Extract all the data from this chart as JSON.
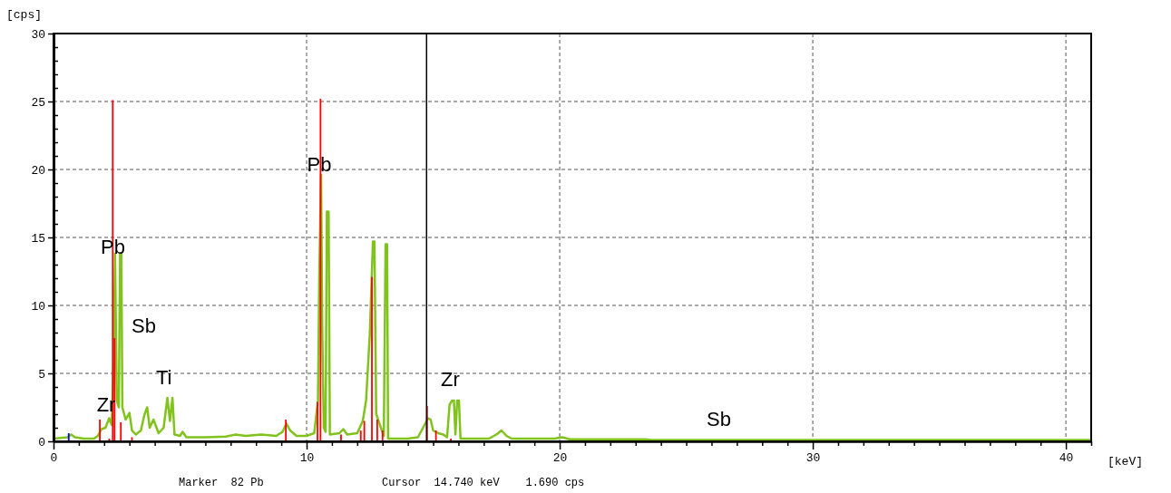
{
  "chart_data": {
    "type": "line",
    "xlabel": "[keV]",
    "ylabel": "[cps]",
    "xlim": [
      0,
      41
    ],
    "ylim": [
      0,
      30
    ],
    "xticks": [
      0,
      {
        "value": 1,
        "label": null
      },
      {
        "value": 2,
        "label": null
      },
      {
        "value": 3,
        "label": null
      },
      {
        "value": 4,
        "label": null
      },
      {
        "value": 5,
        "label": null
      },
      {
        "value": 6,
        "label": null
      },
      {
        "value": 7,
        "label": null
      },
      {
        "value": 8,
        "label": null
      },
      {
        "value": 9,
        "label": null
      },
      10,
      {
        "value": 11,
        "label": null
      },
      {
        "value": 12,
        "label": null
      },
      {
        "value": 13,
        "label": null
      },
      {
        "value": 14,
        "label": null
      },
      {
        "value": 15,
        "label": null
      },
      {
        "value": 16,
        "label": null
      },
      {
        "value": 17,
        "label": null
      },
      {
        "value": 18,
        "label": null
      },
      {
        "value": 19,
        "label": null
      },
      20,
      {
        "value": 21,
        "label": null
      },
      {
        "value": 22,
        "label": null
      },
      {
        "value": 23,
        "label": null
      },
      {
        "value": 24,
        "label": null
      },
      {
        "value": 25,
        "label": null
      },
      {
        "value": 26,
        "label": null
      },
      {
        "value": 27,
        "label": null
      },
      {
        "value": 28,
        "label": null
      },
      {
        "value": 29,
        "label": null
      },
      30,
      {
        "value": 31,
        "label": null
      },
      {
        "value": 32,
        "label": null
      },
      {
        "value": 33,
        "label": null
      },
      {
        "value": 34,
        "label": null
      },
      {
        "value": 35,
        "label": null
      },
      {
        "value": 36,
        "label": null
      },
      {
        "value": 37,
        "label": null
      },
      {
        "value": 38,
        "label": null
      },
      {
        "value": 39,
        "label": null
      },
      40,
      {
        "value": 41,
        "label": null
      }
    ],
    "yticks": [
      0,
      {
        "value": 1,
        "label": null
      },
      {
        "value": 2,
        "label": null
      },
      {
        "value": 3,
        "label": null
      },
      {
        "value": 4,
        "label": null
      },
      5,
      {
        "value": 6,
        "label": null
      },
      {
        "value": 7,
        "label": null
      },
      {
        "value": 8,
        "label": null
      },
      {
        "value": 9,
        "label": null
      },
      10,
      {
        "value": 11,
        "label": null
      },
      {
        "value": 12,
        "label": null
      },
      {
        "value": 13,
        "label": null
      },
      {
        "value": 14,
        "label": null
      },
      15,
      {
        "value": 16,
        "label": null
      },
      {
        "value": 17,
        "label": null
      },
      {
        "value": 18,
        "label": null
      },
      {
        "value": 19,
        "label": null
      },
      20,
      {
        "value": 21,
        "label": null
      },
      {
        "value": 22,
        "label": null
      },
      {
        "value": 23,
        "label": null
      },
      {
        "value": 24,
        "label": null
      },
      25,
      {
        "value": 26,
        "label": null
      },
      {
        "value": 27,
        "label": null
      },
      {
        "value": 28,
        "label": null
      },
      {
        "value": 29,
        "label": null
      },
      30
    ],
    "grid": true,
    "series": [
      {
        "color": "#7fc31c",
        "x": [
          0,
          0.3,
          0.55,
          0.7,
          0.85,
          1.2,
          1.6,
          1.75,
          1.9,
          2.05,
          2.2,
          2.3,
          2.38,
          2.43,
          2.5,
          2.58,
          2.63,
          2.68,
          2.72,
          2.85,
          3.0,
          3.1,
          3.25,
          3.45,
          3.6,
          3.7,
          3.8,
          3.95,
          4.15,
          4.35,
          4.5,
          4.6,
          4.7,
          4.78,
          5.0,
          5.1,
          5.25,
          6,
          6.8,
          7.2,
          7.6,
          8.2,
          8.8,
          9.05,
          9.2,
          9.35,
          9.6,
          10.0,
          10.3,
          10.45,
          10.5,
          10.57,
          10.62,
          10.68,
          10.75,
          10.8,
          10.87,
          10.92,
          11.3,
          11.45,
          11.6,
          12.0,
          12.22,
          12.35,
          12.5,
          12.62,
          12.68,
          12.75,
          12.9,
          13.05,
          13.12,
          13.18,
          13.22,
          14.0,
          14.4,
          14.6,
          14.8,
          14.9,
          15.0,
          15.2,
          15.4,
          15.55,
          15.65,
          15.75,
          15.82,
          15.88,
          15.95,
          16.02,
          16.08,
          17.2,
          17.5,
          17.7,
          17.9,
          18.1,
          19.8,
          20.1,
          20.4,
          23.4,
          23.6,
          41
        ],
        "values": [
          0.2,
          0.25,
          0.3,
          0.5,
          0.3,
          0.2,
          0.2,
          0.4,
          0.9,
          1.0,
          1.7,
          1.2,
          6,
          13.8,
          3,
          2.5,
          13.8,
          13.8,
          2.5,
          1.6,
          2.1,
          0.8,
          0.5,
          0.8,
          2.0,
          2.5,
          1.0,
          1.6,
          0.6,
          1.0,
          3.2,
          1.5,
          3.2,
          0.5,
          0.4,
          0.7,
          0.3,
          0.3,
          0.35,
          0.5,
          0.4,
          0.5,
          0.4,
          0.7,
          1.3,
          0.8,
          0.4,
          0.4,
          0.6,
          3,
          12,
          19.6,
          8,
          1.0,
          0.7,
          16.9,
          16.9,
          0.5,
          0.6,
          0.9,
          0.5,
          0.6,
          1.5,
          3,
          8,
          14.7,
          14.7,
          2.0,
          1.2,
          0.4,
          14.5,
          14.5,
          0.2,
          0.2,
          0.3,
          1.0,
          1.7,
          1.6,
          0.8,
          0.6,
          0.5,
          0.3,
          2.7,
          3.0,
          3.0,
          0.5,
          3.0,
          3.0,
          0.2,
          0.2,
          0.5,
          0.8,
          0.4,
          0.2,
          0.2,
          0.3,
          0.15,
          0.15,
          0.1,
          0.1
        ]
      },
      {
        "type": "bar",
        "color": "#ff0000",
        "x": [
          1.83,
          2.2,
          2.34,
          2.41,
          2.66,
          3.1,
          9.18,
          10.43,
          10.55,
          11.36,
          12.14,
          12.28,
          12.58,
          12.79,
          13.0,
          14.76,
          15.11,
          15.7
        ],
        "values": [
          1.6,
          0.2,
          25.1,
          7.6,
          1.4,
          0.3,
          1.6,
          2.9,
          25.2,
          0.5,
          0.8,
          1.5,
          12.1,
          1.6,
          0.8,
          2.6,
          0.8,
          0.2
        ]
      },
      {
        "type": "bar",
        "color": "#0000ff",
        "x": [
          0.6
        ],
        "values": [
          0.6
        ]
      }
    ],
    "ref_lines": [
      {
        "axis": "x",
        "value": 14.74,
        "color": "#000000"
      }
    ],
    "annotations": [
      {
        "text": "Zr",
        "x": 2.08,
        "y": 2.2
      },
      {
        "text": "Pb",
        "x": 2.35,
        "y": 13.8
      },
      {
        "text": "Pb",
        "x": 10.5,
        "y": 19.9
      },
      "Sb",
      "Ti",
      "Zr",
      "Sb",
      "Marker  82 Pb",
      "Cursor  14.740 keV    1.690 cps"
    ]
  }
}
